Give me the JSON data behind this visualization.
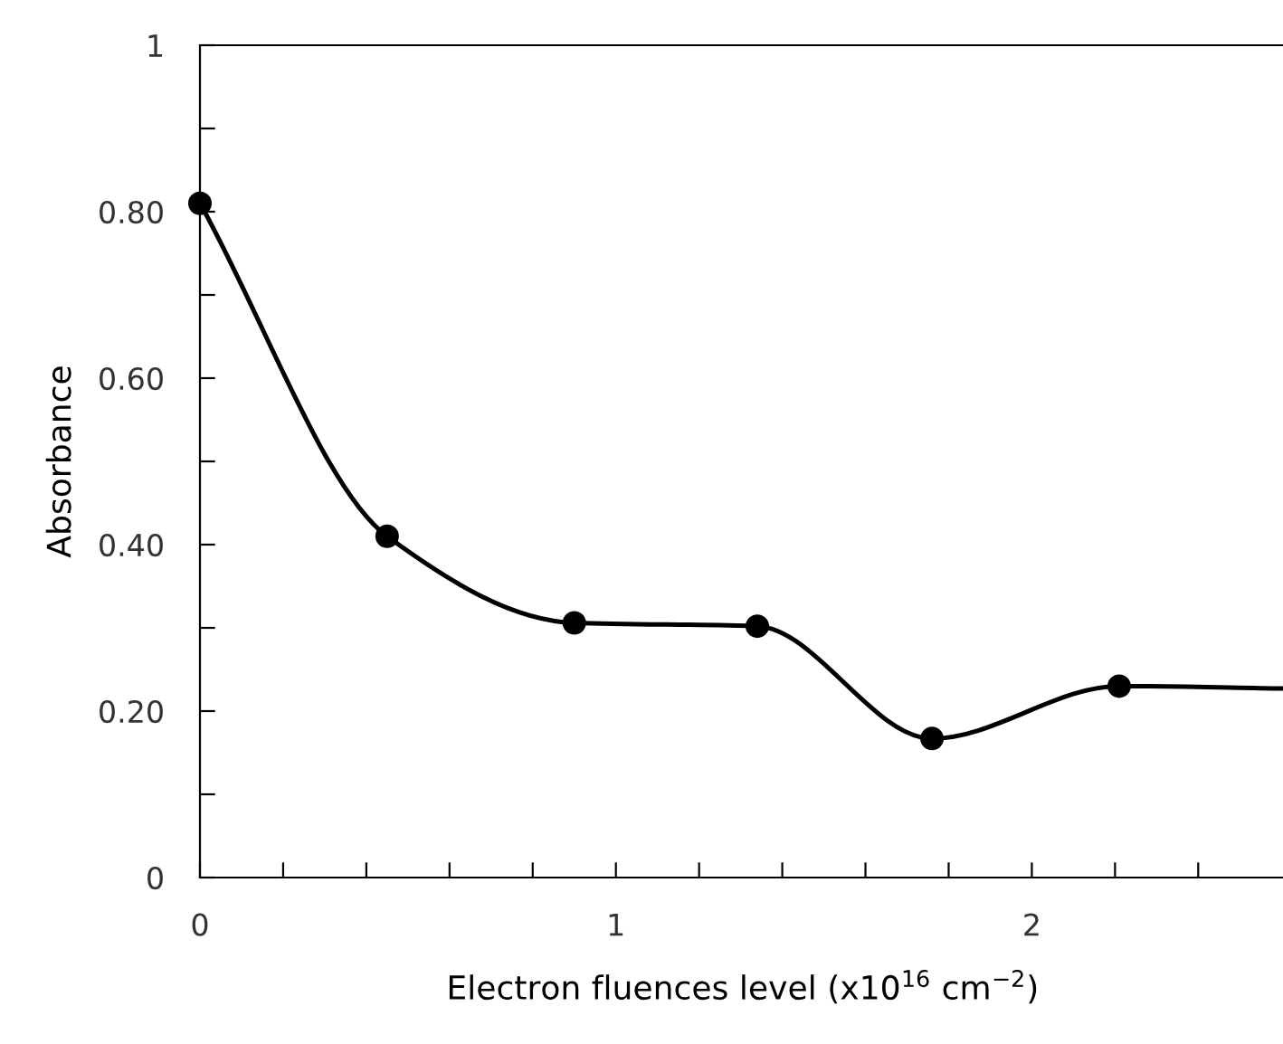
{
  "chart_data": {
    "type": "line",
    "xlabel": "Electron fluences level (x10$^{16}$ cm$^{−2}$)",
    "ylabel": "Absorbance",
    "series": [
      {
        "color": "#000000",
        "x": [
          0,
          0.45,
          0.9,
          1.34,
          1.76,
          2.21,
          2.61
        ],
        "values": [
          0.81,
          0.41,
          0.306,
          0.302,
          0.167,
          0.23,
          0.227
        ],
        "marker": "none"
      },
      {
        "type": "scatter",
        "color": "#000000",
        "x": [
          0,
          0.45,
          0.9,
          1.34,
          1.76,
          2.21
        ],
        "values": [
          0.81,
          0.41,
          0.306,
          0.302,
          0.167,
          0.23
        ],
        "marker": "circle"
      }
    ],
    "xlim": [
      0,
      2.61
    ],
    "xticks": [
      0,
      {
        "value": 0.2,
        "label": null
      },
      {
        "value": 0.4,
        "label": null
      },
      {
        "value": 0.6,
        "label": null
      },
      {
        "value": 0.8,
        "label": null
      },
      1,
      {
        "value": 1.2,
        "label": null
      },
      {
        "value": 1.4,
        "label": null
      },
      {
        "value": 1.6,
        "label": null
      },
      {
        "value": 1.8,
        "label": null
      },
      2,
      {
        "value": 2.2,
        "label": null
      },
      {
        "value": 2.4,
        "label": null
      }
    ],
    "ylim": [
      0,
      1
    ],
    "yticks": [
      0,
      {
        "value": 0.1,
        "label": null
      },
      {
        "value": 0.2,
        "label": "0.20"
      },
      {
        "value": 0.3,
        "label": null
      },
      {
        "value": 0.4,
        "label": "0.40"
      },
      {
        "value": 0.5,
        "label": null
      },
      {
        "value": 0.6,
        "label": "0.60"
      },
      {
        "value": 0.7,
        "label": null
      },
      {
        "value": 0.8,
        "label": "0.80"
      },
      {
        "value": 0.9,
        "label": null
      },
      1
    ],
    "grid": false,
    "legend": false
  }
}
